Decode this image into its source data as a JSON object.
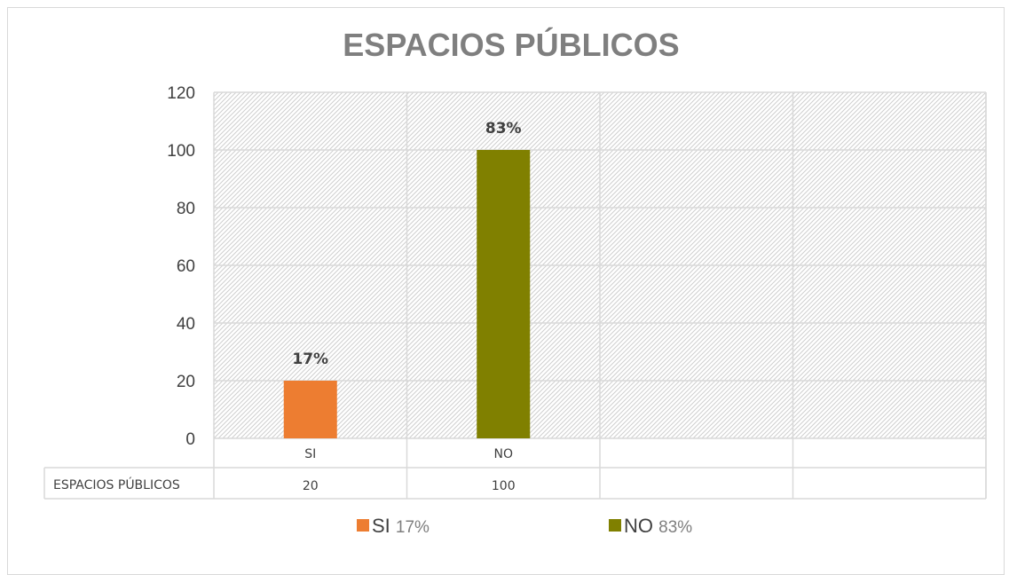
{
  "chart_data": {
    "type": "bar",
    "title": "ESPACIOS PÚBLICOS",
    "categories": [
      "SI",
      "NO",
      "",
      ""
    ],
    "series": [
      {
        "name": "ESPACIOS PÚBLICOS",
        "values": [
          20,
          100,
          null,
          null
        ]
      }
    ],
    "data_labels": [
      "17%",
      "83%",
      "",
      ""
    ],
    "bar_colors": [
      "#ed7d31",
      "#808000"
    ],
    "ylim": [
      0,
      120
    ],
    "yticks": [
      0,
      20,
      40,
      60,
      80,
      100,
      120
    ],
    "grid": true,
    "data_table": {
      "row_label": "ESPACIOS PÚBLICOS",
      "cells": [
        "20",
        "100",
        "",
        ""
      ]
    },
    "legend": {
      "placement": "bottom",
      "items": [
        {
          "label": "SI",
          "pct": "17%",
          "color": "#ed7d31"
        },
        {
          "label": "NO",
          "pct": "83%",
          "color": "#808000"
        }
      ]
    }
  }
}
